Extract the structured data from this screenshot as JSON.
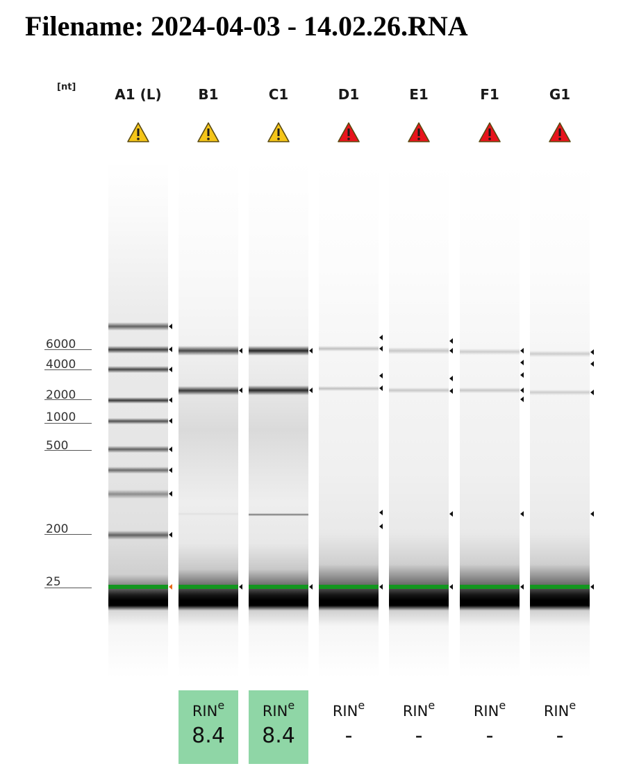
{
  "title": "Filename: 2024-04-03 - 14.02.26.RNA",
  "unit_label": "[nt]",
  "size_markers": [
    "6000",
    "4000",
    "2000",
    "1000",
    "500",
    "200",
    "25"
  ],
  "lanes": [
    {
      "id": "A1 (L)",
      "warning": "yellow",
      "rin_label": "",
      "rin_sup": "",
      "rin_value": ""
    },
    {
      "id": "B1",
      "warning": "yellow",
      "rin_label": "RIN",
      "rin_sup": "e",
      "rin_value": "8.4"
    },
    {
      "id": "C1",
      "warning": "yellow",
      "rin_label": "RIN",
      "rin_sup": "e",
      "rin_value": "8.4"
    },
    {
      "id": "D1",
      "warning": "red",
      "rin_label": "RIN",
      "rin_sup": "e",
      "rin_value": "-"
    },
    {
      "id": "E1",
      "warning": "red",
      "rin_label": "RIN",
      "rin_sup": "e",
      "rin_value": "-"
    },
    {
      "id": "F1",
      "warning": "red",
      "rin_label": "RIN",
      "rin_sup": "e",
      "rin_value": "-"
    },
    {
      "id": "G1",
      "warning": "red",
      "rin_label": "RIN",
      "rin_sup": "e",
      "rin_value": "-"
    }
  ],
  "colors": {
    "warning_yellow": "#f5c518",
    "warning_red": "#e8141c",
    "marker_green": "#13961f",
    "rin_good": "#8fd6a6"
  }
}
